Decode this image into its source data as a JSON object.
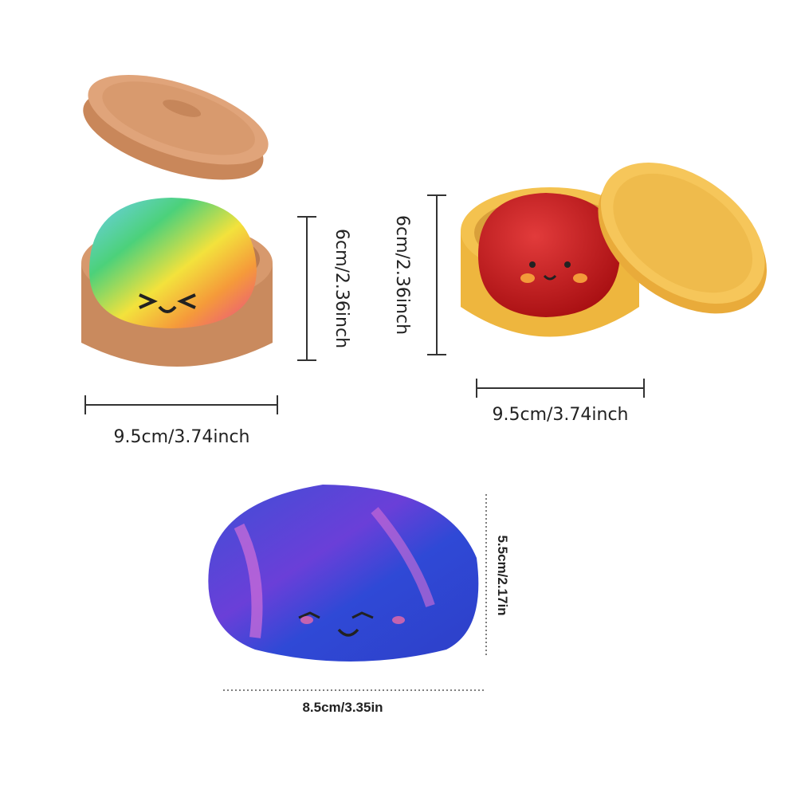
{
  "products": [
    {
      "height_label": "6cm/2.36inch",
      "width_label": "9.5cm/3.74inch"
    },
    {
      "height_label": "6cm/2.36inch",
      "width_label": "9.5cm/3.74inch"
    },
    {
      "height_label": "5.5cm/2.17in",
      "width_label": "8.5cm/3.35in"
    }
  ]
}
